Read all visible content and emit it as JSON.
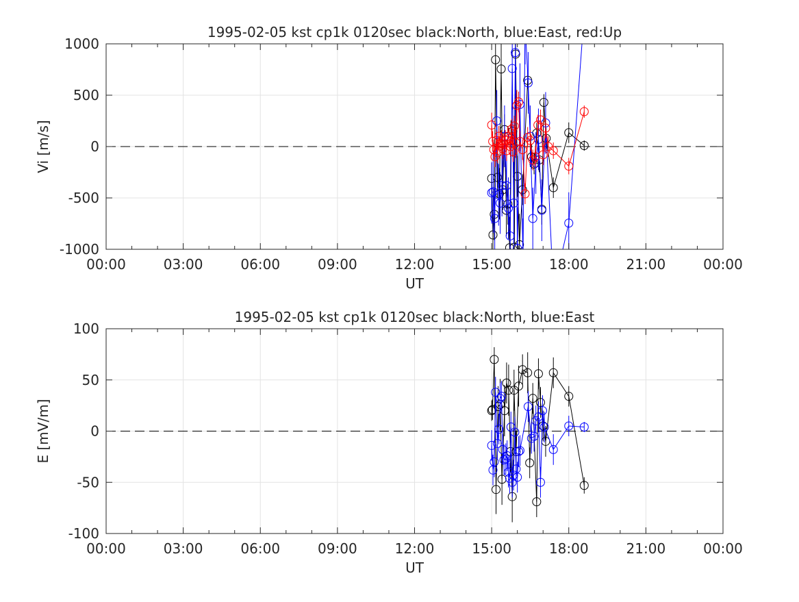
{
  "chart_data": [
    {
      "type": "line",
      "title": "1995-02-05 kst cp1k 0120sec black:North, blue:East, red:Up",
      "xlabel": "UT",
      "ylabel": "Vi [m/s]",
      "xlim": [
        0,
        24
      ],
      "ylim": [
        -1000,
        1000
      ],
      "x_ticks": [
        "00:00",
        "03:00",
        "06:00",
        "09:00",
        "12:00",
        "15:00",
        "18:00",
        "21:00",
        "00:00"
      ],
      "y_ticks": [
        "-1000",
        "-500",
        "0",
        "500",
        "1000"
      ],
      "grid": true,
      "zero_line": "dashed",
      "series": [
        {
          "name": "North",
          "color": "#000000",
          "x": [
            15.0,
            15.05,
            15.1,
            15.15,
            15.22,
            15.3,
            15.37,
            15.43,
            15.5,
            15.57,
            15.63,
            15.7,
            15.75,
            15.82,
            15.88,
            15.93,
            16.0,
            16.08,
            16.2,
            16.4,
            16.55,
            16.65,
            16.75,
            16.85,
            16.95,
            17.03,
            17.12,
            17.4,
            18.0,
            18.6
          ],
          "y": [
            -310,
            -860,
            -660,
            845,
            -300,
            -460,
            755,
            -420,
            165,
            -620,
            -560,
            -985,
            55,
            150,
            -980,
            900,
            -290,
            -955,
            -420,
            645,
            -100,
            -170,
            130,
            -130,
            -610,
            430,
            80,
            -400,
            135,
            10
          ],
          "err": [
            150,
            200,
            250,
            300,
            200,
            250,
            300,
            200,
            150,
            250,
            200,
            300,
            200,
            250,
            250,
            300,
            200,
            300,
            150,
            80,
            120,
            100,
            100,
            120,
            150,
            80,
            100,
            100,
            100,
            50
          ]
        },
        {
          "name": "East",
          "color": "#0000ff",
          "x": [
            15.0,
            15.06,
            15.12,
            15.2,
            15.27,
            15.33,
            15.4,
            15.5,
            15.58,
            15.65,
            15.72,
            15.8,
            15.86,
            15.92,
            16.0,
            16.1,
            16.22,
            16.3,
            16.42,
            16.5,
            16.6,
            16.72,
            16.82,
            16.95,
            17.1,
            17.4,
            18.0,
            18.6
          ],
          "y": [
            -450,
            -440,
            -700,
            250,
            -470,
            -550,
            -380,
            100,
            -380,
            -600,
            -870,
            760,
            -550,
            915,
            -990,
            410,
            -1100,
            1200,
            620,
            100,
            -700,
            -160,
            70,
            -620,
            230,
            -1400,
            -745,
            1300
          ],
          "err": [
            300,
            400,
            300,
            300,
            300,
            300,
            300,
            300,
            300,
            300,
            400,
            400,
            400,
            400,
            400,
            400,
            400,
            400,
            300,
            300,
            300,
            300,
            300,
            300,
            300,
            300,
            300,
            300
          ]
        },
        {
          "name": "Up",
          "color": "#ff0000",
          "x": [
            15.0,
            15.04,
            15.08,
            15.13,
            15.18,
            15.23,
            15.28,
            15.33,
            15.38,
            15.43,
            15.48,
            15.53,
            15.58,
            15.63,
            15.68,
            15.73,
            15.78,
            15.83,
            15.88,
            15.93,
            15.98,
            16.05,
            16.1,
            16.2,
            16.3,
            16.4,
            16.5,
            16.6,
            16.7,
            16.8,
            16.9,
            17.0,
            17.1,
            17.2,
            17.4,
            18.0,
            18.6
          ],
          "y": [
            210,
            50,
            -30,
            -100,
            60,
            -60,
            100,
            30,
            60,
            -20,
            20,
            60,
            -40,
            100,
            80,
            0,
            170,
            -50,
            200,
            40,
            400,
            435,
            50,
            -30,
            -460,
            90,
            60,
            -130,
            -100,
            210,
            260,
            -80,
            180,
            0,
            -40,
            -190,
            340
          ],
          "err": [
            120,
            100,
            100,
            100,
            100,
            100,
            100,
            100,
            100,
            100,
            100,
            100,
            100,
            100,
            100,
            100,
            100,
            100,
            100,
            150,
            150,
            100,
            100,
            100,
            100,
            100,
            100,
            100,
            100,
            100,
            100,
            100,
            100,
            100,
            80,
            80,
            60
          ]
        }
      ]
    },
    {
      "type": "line",
      "title": "1995-02-05 kst cp1k 0120sec black:North, blue:East",
      "xlabel": "UT",
      "ylabel": "E [mV/m]",
      "xlim": [
        0,
        24
      ],
      "ylim": [
        -100,
        100
      ],
      "x_ticks": [
        "00:00",
        "03:00",
        "06:00",
        "09:00",
        "12:00",
        "15:00",
        "18:00",
        "21:00",
        "00:00"
      ],
      "y_ticks": [
        "-100",
        "-50",
        "0",
        "50",
        "100"
      ],
      "grid": true,
      "zero_line": "dashed",
      "series": [
        {
          "name": "North",
          "color": "#000000",
          "x": [
            15.0,
            15.03,
            15.1,
            15.17,
            15.25,
            15.33,
            15.4,
            15.5,
            15.58,
            15.66,
            15.73,
            15.8,
            15.87,
            15.95,
            16.05,
            16.2,
            16.4,
            16.48,
            16.6,
            16.75,
            16.82,
            16.9,
            17.0,
            17.1,
            17.4,
            18.0,
            18.6
          ],
          "y": [
            20,
            21,
            70,
            -57,
            24,
            26,
            -47,
            20,
            47,
            40,
            -20,
            -64,
            40,
            -20,
            44,
            60,
            57,
            -31,
            32,
            -69,
            56,
            28,
            5,
            -10,
            57,
            34,
            -53
          ],
          "err": [
            10,
            10,
            12,
            24,
            20,
            25,
            25,
            25,
            20,
            25,
            20,
            25,
            20,
            20,
            20,
            15,
            20,
            15,
            15,
            15,
            15,
            15,
            15,
            15,
            15,
            10,
            8
          ]
        },
        {
          "name": "East",
          "color": "#0000ff",
          "x": [
            15.0,
            15.05,
            15.1,
            15.15,
            15.22,
            15.28,
            15.33,
            15.38,
            15.43,
            15.48,
            15.55,
            15.6,
            15.65,
            15.7,
            15.75,
            15.8,
            15.85,
            15.9,
            15.95,
            16.0,
            16.05,
            16.1,
            16.42,
            16.55,
            16.65,
            16.72,
            16.82,
            16.9,
            16.98,
            17.05,
            17.4,
            18.0,
            18.6
          ],
          "y": [
            -14,
            -38,
            -30,
            38,
            -12,
            2,
            32,
            34,
            -18,
            -28,
            -27,
            -24,
            -40,
            -46,
            4,
            -50,
            -43,
            -1,
            -37,
            -45,
            -20,
            -19,
            24,
            -7,
            -5,
            10,
            14,
            -50,
            20,
            4,
            -18,
            5,
            4
          ],
          "err": [
            15,
            15,
            15,
            15,
            15,
            15,
            15,
            15,
            15,
            15,
            15,
            15,
            15,
            15,
            15,
            15,
            15,
            15,
            15,
            15,
            15,
            15,
            15,
            15,
            15,
            15,
            15,
            15,
            15,
            15,
            15,
            10,
            5
          ]
        }
      ]
    }
  ]
}
